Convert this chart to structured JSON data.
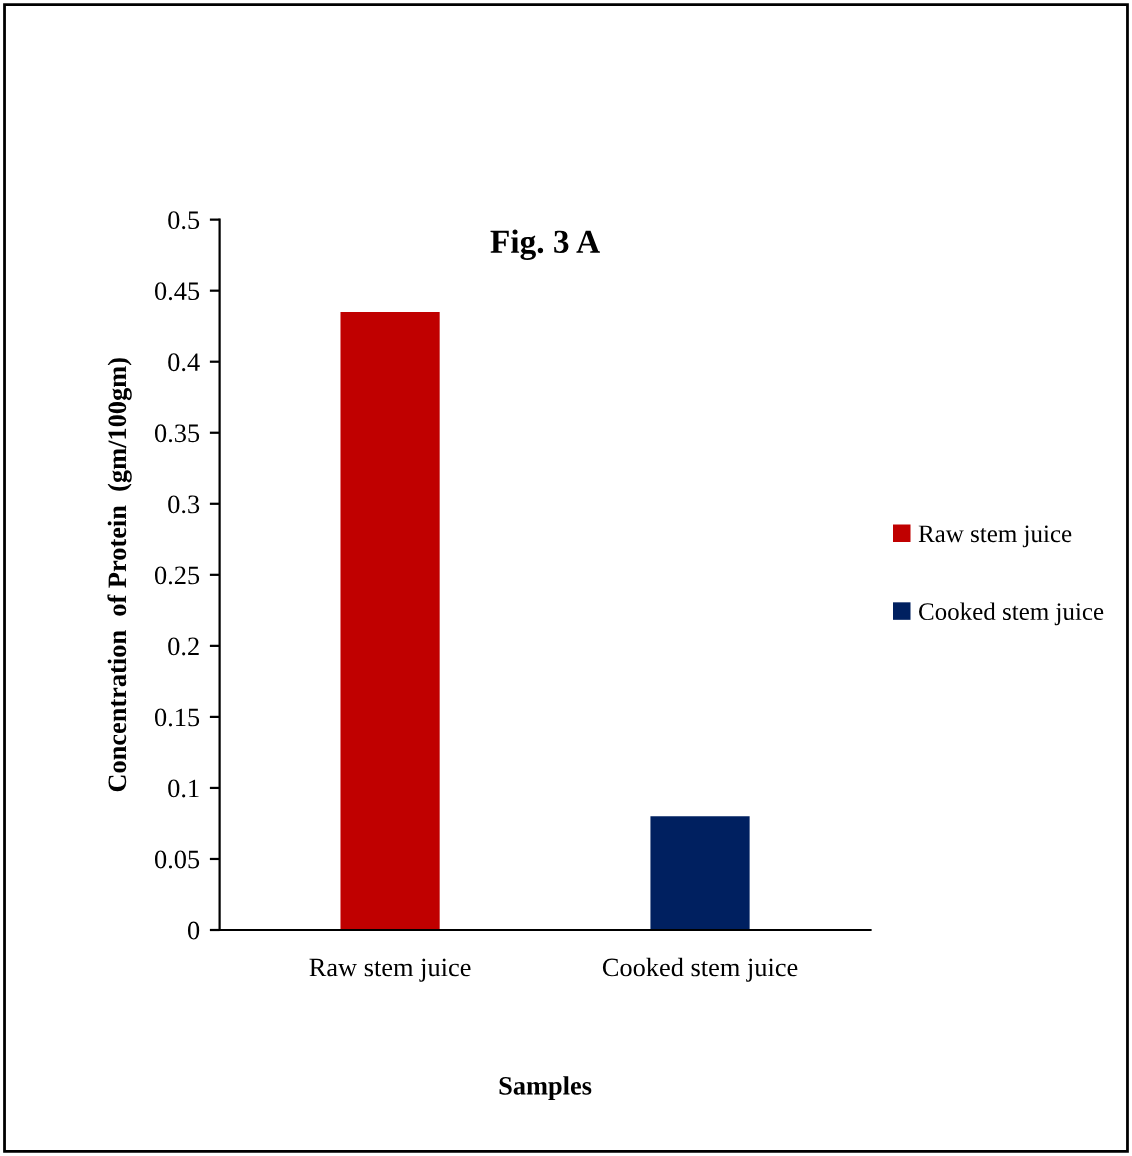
{
  "chart_data": {
    "type": "bar",
    "title": "Fig. 3 A",
    "xlabel": "Samples",
    "ylabel": "Concentration  of Protein  (gm/100gm)",
    "categories": [
      "Raw stem juice",
      "Cooked stem juice"
    ],
    "series": [
      {
        "name": "Raw stem juice",
        "color": "#c00000",
        "values": [
          0.435,
          null
        ]
      },
      {
        "name": "Cooked stem juice",
        "color": "#002060",
        "values": [
          null,
          0.08
        ]
      }
    ],
    "ylim": [
      0,
      0.5
    ],
    "yticks": [
      0,
      0.05,
      0.1,
      0.15,
      0.2,
      0.25,
      0.3,
      0.35,
      0.4,
      0.45,
      0.5
    ],
    "grid": false,
    "legend": "right"
  }
}
